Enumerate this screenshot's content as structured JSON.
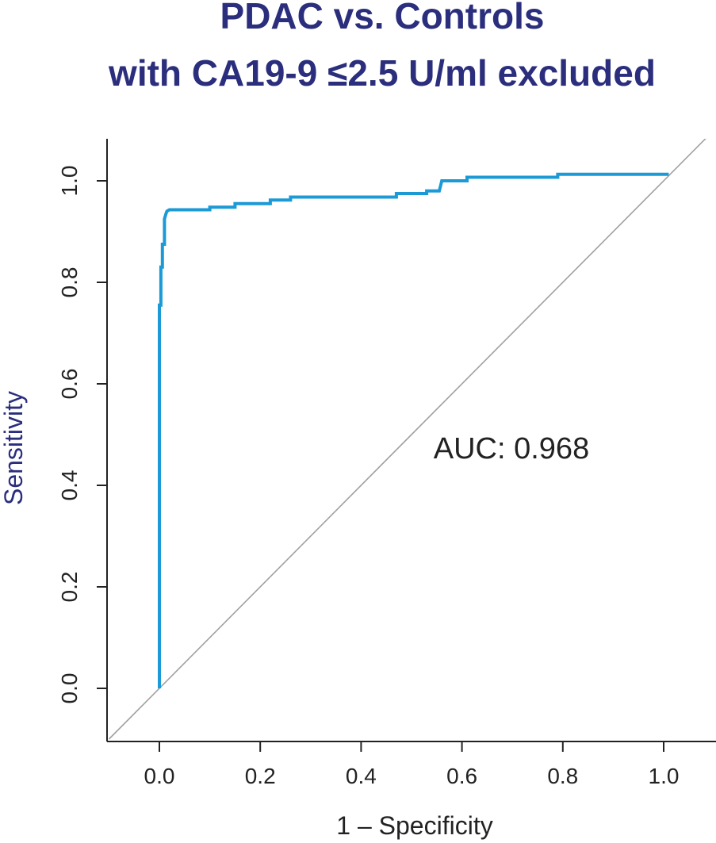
{
  "chart_data": {
    "type": "line",
    "title": "PDAC vs. Controls",
    "subtitle": "with CA19-9 ≤2.5 U/ml excluded",
    "xlabel": "1 – Specificity",
    "ylabel": "Sensitivity",
    "xlim": [
      -0.1,
      1.1
    ],
    "ylim": [
      -0.1,
      1.08
    ],
    "xticks": [
      "0.0",
      "0.2",
      "0.4",
      "0.6",
      "0.8",
      "1.0"
    ],
    "yticks": [
      "0.0",
      "0.2",
      "0.4",
      "0.6",
      "0.8",
      "1.0"
    ],
    "grid": false,
    "annotation": "AUC: 0.968",
    "colors": {
      "title": "#2b2e7c",
      "roc_curve": "#1c9ad6",
      "reference_line": "#a0a0a0"
    },
    "series": [
      {
        "x": [
          0.0,
          0.0,
          0.003,
          0.003,
          0.006,
          0.006,
          0.01,
          0.01,
          0.013,
          0.015,
          0.02,
          0.03,
          0.1,
          0.1,
          0.15,
          0.15,
          0.22,
          0.22,
          0.26,
          0.26,
          0.47,
          0.47,
          0.53,
          0.53,
          0.555,
          0.56,
          0.61,
          0.61,
          0.79,
          0.79,
          1.01
        ],
        "y": [
          0.0,
          0.755,
          0.755,
          0.83,
          0.83,
          0.875,
          0.875,
          0.925,
          0.935,
          0.94,
          0.943,
          0.943,
          0.943,
          0.948,
          0.948,
          0.955,
          0.955,
          0.962,
          0.962,
          0.968,
          0.968,
          0.975,
          0.975,
          0.98,
          0.98,
          1.0,
          1.0,
          1.007,
          1.007,
          1.013,
          1.013
        ]
      },
      {
        "x": [
          -0.1,
          1.1
        ],
        "y": [
          -0.1,
          1.1
        ]
      }
    ]
  }
}
